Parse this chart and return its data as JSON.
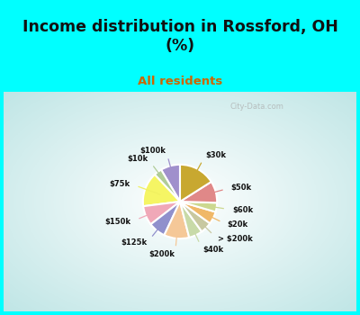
{
  "title": "Income distribution in Rossford, OH\n(%)",
  "subtitle": "All residents",
  "title_color": "#111111",
  "subtitle_color": "#cc6600",
  "bg_top": "#00ffff",
  "labels": [
    "$100k",
    "$10k",
    "$75k",
    "$150k",
    "$125k",
    "$200k",
    "$40k",
    "> $200k",
    "$20k",
    "$60k",
    "$50k",
    "$30k"
  ],
  "values": [
    8.5,
    3.5,
    15.0,
    8.5,
    7.5,
    11.0,
    6.0,
    5.0,
    5.5,
    4.0,
    9.5,
    16.0
  ],
  "colors": [
    "#a090cc",
    "#b0cc98",
    "#f5f564",
    "#f0a8b8",
    "#9090cc",
    "#f5c898",
    "#c8daa8",
    "#c8c8a0",
    "#f0b868",
    "#ccd890",
    "#e08888",
    "#c8a830"
  ],
  "line_colors": [
    "#a090cc",
    "#b0cc98",
    "#f0f060",
    "#f0a8b8",
    "#9090cc",
    "#f5c898",
    "#c8daa8",
    "#c8c8a0",
    "#f0b868",
    "#ccd890",
    "#e08888",
    "#c8a830"
  ],
  "startangle": 90,
  "watermark": "City-Data.com"
}
